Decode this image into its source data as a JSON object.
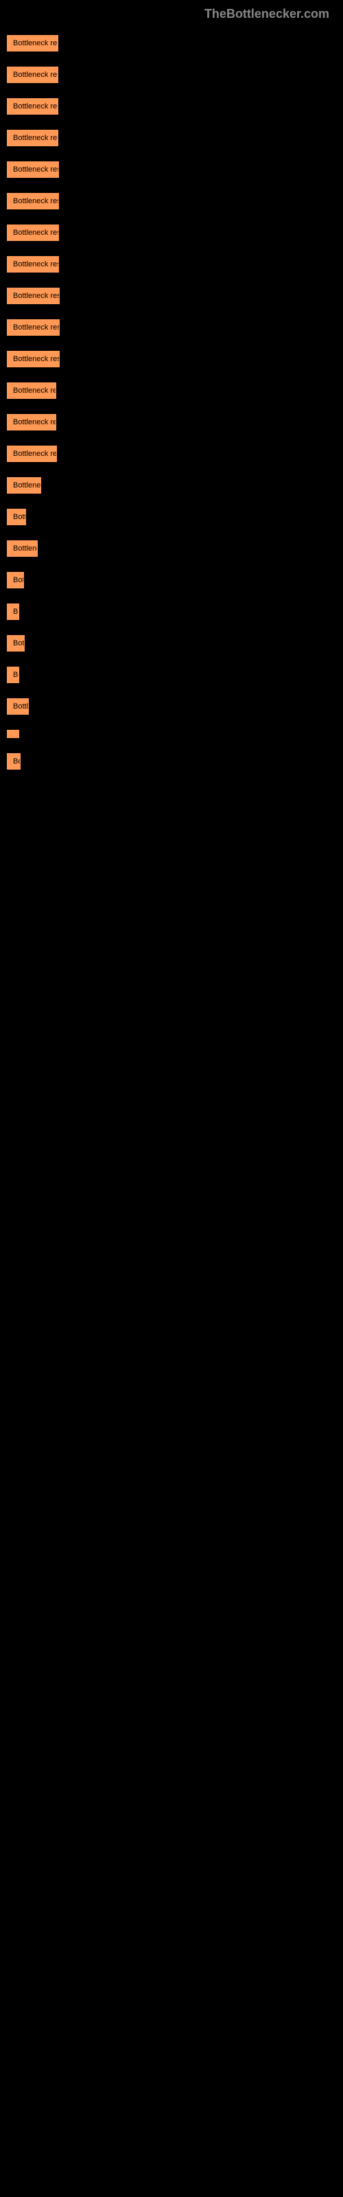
{
  "header": {
    "site_name": "TheBottlenecker.com"
  },
  "chart": {
    "bar_color": "#ff9955",
    "background_color": "#000000",
    "text_color": "#000000",
    "header_color": "#888888",
    "max_width": 100,
    "bars": [
      {
        "label": "Bottleneck result",
        "width": 75
      },
      {
        "label": "Bottleneck result",
        "width": 75
      },
      {
        "label": "Bottleneck result",
        "width": 75
      },
      {
        "label": "Bottleneck result",
        "width": 75
      },
      {
        "label": "Bottleneck result",
        "width": 76
      },
      {
        "label": "Bottleneck result",
        "width": 76
      },
      {
        "label": "Bottleneck result",
        "width": 76
      },
      {
        "label": "Bottleneck result",
        "width": 76
      },
      {
        "label": "Bottleneck result",
        "width": 77
      },
      {
        "label": "Bottleneck result",
        "width": 77
      },
      {
        "label": "Bottleneck result",
        "width": 77
      },
      {
        "label": "Bottleneck resu",
        "width": 72
      },
      {
        "label": "Bottleneck resu",
        "width": 72
      },
      {
        "label": "Bottleneck resu",
        "width": 73
      },
      {
        "label": "Bottleneck",
        "width": 50
      },
      {
        "label": "Bottle",
        "width": 28
      },
      {
        "label": "Bottlenec",
        "width": 45
      },
      {
        "label": "Bottl",
        "width": 25
      },
      {
        "label": "B",
        "width": 10
      },
      {
        "label": "Bottl",
        "width": 26
      },
      {
        "label": "Bo",
        "width": 15
      },
      {
        "label": "Bottlen",
        "width": 32
      },
      {
        "label": "",
        "width": 3
      },
      {
        "label": "Bot",
        "width": 20
      }
    ]
  }
}
